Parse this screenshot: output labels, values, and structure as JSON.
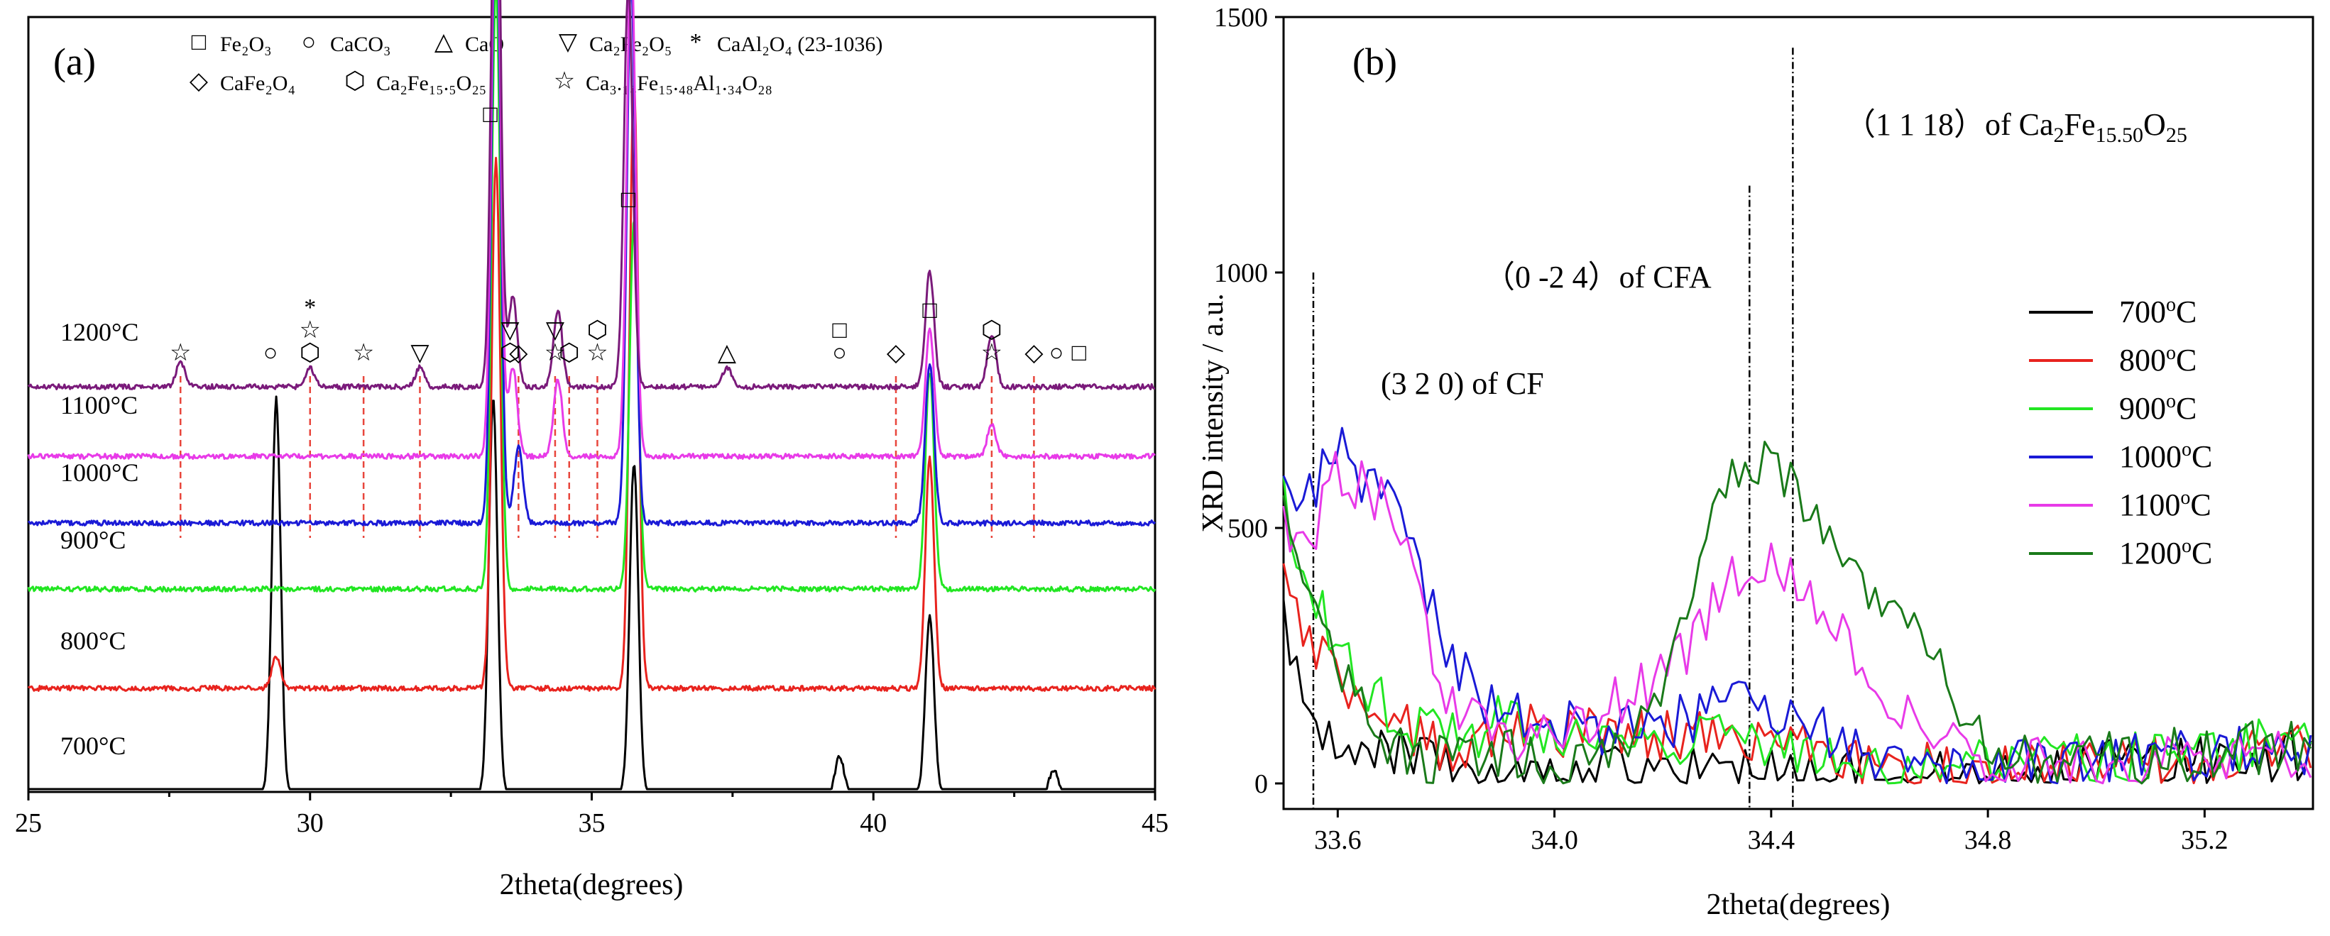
{
  "panel_a": {
    "label": "(a)",
    "xlabel": "2theta(degrees)",
    "xticks": [
      "25",
      "30",
      "35",
      "40",
      "45"
    ],
    "legend_row1": [
      {
        "symbol": "□",
        "label": "Fe₂O₃"
      },
      {
        "symbol": "○",
        "label": "CaCO₃"
      },
      {
        "symbol": "△",
        "label": "CaO"
      },
      {
        "symbol": "▽",
        "label": "Ca₂Fe₂O₅"
      },
      {
        "symbol": "*",
        "label": "CaAl₂O₄ (23-1036)"
      }
    ],
    "legend_row2": [
      {
        "symbol": "◇",
        "label": "CaFe₂O₄"
      },
      {
        "symbol": "⬡",
        "label": "Ca₂Fe₁₅.₅O₂₅"
      },
      {
        "symbol": "☆",
        "label": "Ca₃.₁₈Fe₁₅.₄₈Al₁.₃₄O₂₈"
      }
    ],
    "temperatures": [
      "700°C",
      "800°C",
      "900°C",
      "1000°C",
      "1100°C",
      "1200°C"
    ],
    "colors": [
      "#000000",
      "#e8231e",
      "#22e622",
      "#1a1ad6",
      "#e83ae8",
      "#7a1a7a"
    ],
    "peak_markers": [
      {
        "x": 27.7,
        "symbol": "☆"
      },
      {
        "x": 29.3,
        "symbol": "○"
      },
      {
        "x": 30.0,
        "symbol": "⬡"
      },
      {
        "x": 30.0,
        "symbol": "☆"
      },
      {
        "x": 30.0,
        "symbol": "*"
      },
      {
        "x": 30.95,
        "symbol": "☆"
      },
      {
        "x": 31.95,
        "symbol": "▽"
      },
      {
        "x": 33.2,
        "symbol": "□"
      },
      {
        "x": 33.55,
        "symbol": "⬡"
      },
      {
        "x": 33.55,
        "symbol": "▽"
      },
      {
        "x": 33.7,
        "symbol": "◇"
      },
      {
        "x": 34.35,
        "symbol": "☆"
      },
      {
        "x": 34.35,
        "symbol": "▽"
      },
      {
        "x": 34.6,
        "symbol": "⬡"
      },
      {
        "x": 35.1,
        "symbol": "☆"
      },
      {
        "x": 35.1,
        "symbol": "⬡"
      },
      {
        "x": 35.65,
        "symbol": "□"
      },
      {
        "x": 37.4,
        "symbol": "△"
      },
      {
        "x": 39.4,
        "symbol": "○"
      },
      {
        "x": 39.4,
        "symbol": "□"
      },
      {
        "x": 40.4,
        "symbol": "◇"
      },
      {
        "x": 41.0,
        "symbol": "□"
      },
      {
        "x": 42.1,
        "symbol": "☆"
      },
      {
        "x": 42.1,
        "symbol": "⬡"
      },
      {
        "x": 42.85,
        "symbol": "◇"
      },
      {
        "x": 43.25,
        "symbol": "○"
      },
      {
        "x": 43.65,
        "symbol": "□"
      }
    ],
    "drop_lines_x": [
      27.7,
      30.0,
      30.95,
      31.95,
      33.7,
      34.35,
      34.6,
      35.1,
      40.4,
      42.1,
      42.85
    ]
  },
  "panel_b": {
    "label": "(b)",
    "xlabel": "2theta(degrees)",
    "ylabel": "XRD intensity / a.u.",
    "xticks": [
      "33.6",
      "34.0",
      "34.4",
      "34.8",
      "35.2"
    ],
    "yticks": [
      "0",
      "500",
      "1000",
      "1500"
    ],
    "xlim": [
      33.5,
      35.4
    ],
    "ylim": [
      -50,
      1500
    ],
    "ref_lines": [
      {
        "x": 33.555,
        "top": 1000
      },
      {
        "x": 34.36,
        "top": 1170
      },
      {
        "x": 34.44,
        "top": 1440
      }
    ],
    "annotations": {
      "cf_a": "(3 2 0) of CF",
      "cfa_a": "（0 -2 4）of CFA",
      "hex_a": "（1 1 18）of Ca",
      "hex_s1": "2",
      "hex_b": "Fe",
      "hex_s2": "15.50",
      "hex_c": "O",
      "hex_s3": "25"
    },
    "legend": [
      {
        "label": "700",
        "unit": "C",
        "color": "#000000"
      },
      {
        "label": "800",
        "unit": "C",
        "color": "#e8231e"
      },
      {
        "label": "900",
        "unit": "C",
        "color": "#22e622"
      },
      {
        "label": "1000",
        "unit": "C",
        "color": "#1a1ad6"
      },
      {
        "label": "1100",
        "unit": "C",
        "color": "#e83ae8"
      },
      {
        "label": "1200",
        "unit": "C",
        "color": "#1a7a1a"
      }
    ]
  },
  "chart_data": [
    {
      "type": "line",
      "title": "(a)",
      "xlabel": "2theta(degrees)",
      "ylabel": "",
      "xlim": [
        25,
        45
      ],
      "series": [
        {
          "name": "700°C",
          "peaks": [
            [
              29.4,
              0.62
            ],
            [
              33.25,
              0.62
            ],
            [
              35.75,
              0.52
            ],
            [
              39.4,
              0.06
            ],
            [
              41.0,
              0.28
            ],
            [
              43.2,
              0.04
            ]
          ]
        },
        {
          "name": "800°C",
          "peaks": [
            [
              29.4,
              0.05
            ],
            [
              33.3,
              0.83
            ],
            [
              35.75,
              0.95
            ],
            [
              41.0,
              0.36
            ]
          ]
        },
        {
          "name": "900°C",
          "peaks": [
            [
              33.3,
              0.95
            ],
            [
              35.75,
              0.58
            ],
            [
              41.0,
              0.34
            ]
          ]
        },
        {
          "name": "1000°C",
          "peaks": [
            [
              33.3,
              1.0
            ],
            [
              33.7,
              0.12
            ],
            [
              35.7,
              0.85
            ],
            [
              41.0,
              0.25
            ]
          ]
        },
        {
          "name": "1100°C",
          "peaks": [
            [
              33.3,
              0.95
            ],
            [
              33.6,
              0.14
            ],
            [
              34.4,
              0.12
            ],
            [
              35.7,
              0.8
            ],
            [
              41.0,
              0.2
            ],
            [
              42.1,
              0.05
            ]
          ]
        },
        {
          "name": "1200°C",
          "peaks": [
            [
              27.7,
              0.04
            ],
            [
              30.0,
              0.03
            ],
            [
              31.95,
              0.03
            ],
            [
              33.3,
              0.98
            ],
            [
              33.6,
              0.14
            ],
            [
              34.4,
              0.12
            ],
            [
              35.65,
              0.63
            ],
            [
              37.4,
              0.03
            ],
            [
              41.0,
              0.18
            ],
            [
              42.1,
              0.08
            ]
          ]
        }
      ]
    },
    {
      "type": "line",
      "title": "(b)",
      "xlabel": "2theta(degrees)",
      "ylabel": "XRD intensity / a.u.",
      "xlim": [
        33.5,
        35.4
      ],
      "ylim": [
        -50,
        1500
      ],
      "series": [
        {
          "name": "700°C",
          "x": [
            33.5,
            33.55,
            33.6,
            33.7,
            33.8,
            33.9,
            34.0,
            34.2,
            34.4,
            34.6,
            34.8,
            35.0,
            35.2,
            35.4
          ],
          "y": [
            320,
            150,
            80,
            60,
            30,
            20,
            20,
            15,
            20,
            10,
            10,
            30,
            40,
            60
          ]
        },
        {
          "name": "800°C",
          "x": [
            33.5,
            33.55,
            33.6,
            33.7,
            33.8,
            33.9,
            34.0,
            34.2,
            34.4,
            34.6,
            34.8,
            35.0,
            35.2,
            35.4
          ],
          "y": [
            390,
            260,
            200,
            120,
            60,
            110,
            100,
            90,
            80,
            40,
            20,
            40,
            50,
            80
          ]
        },
        {
          "name": "900°C",
          "x": [
            33.5,
            33.55,
            33.6,
            33.7,
            33.8,
            33.9,
            34.0,
            34.2,
            34.4,
            34.6,
            34.8,
            35.0,
            35.2,
            35.4
          ],
          "y": [
            560,
            380,
            260,
            140,
            80,
            120,
            100,
            90,
            70,
            40,
            30,
            50,
            60,
            90
          ]
        },
        {
          "name": "1000°C",
          "x": [
            33.5,
            33.55,
            33.6,
            33.65,
            33.7,
            33.8,
            33.9,
            34.0,
            34.2,
            34.35,
            34.5,
            34.6,
            34.8,
            35.0,
            35.2,
            35.4
          ],
          "y": [
            560,
            560,
            670,
            580,
            560,
            250,
            130,
            110,
            110,
            160,
            100,
            60,
            30,
            40,
            50,
            70
          ]
        },
        {
          "name": "1100°C",
          "x": [
            33.5,
            33.55,
            33.6,
            33.65,
            33.7,
            33.8,
            33.9,
            34.0,
            34.2,
            34.35,
            34.45,
            34.55,
            34.7,
            34.8,
            35.0,
            35.2,
            35.4
          ],
          "y": [
            500,
            480,
            620,
            570,
            540,
            180,
            90,
            100,
            200,
            430,
            400,
            250,
            80,
            40,
            30,
            40,
            60
          ]
        },
        {
          "name": "1200°C",
          "x": [
            33.5,
            33.55,
            33.6,
            33.7,
            33.8,
            33.9,
            34.0,
            34.1,
            34.2,
            34.3,
            34.36,
            34.45,
            34.55,
            34.7,
            34.8,
            34.9,
            35.0,
            35.2,
            35.4
          ],
          "y": [
            520,
            320,
            220,
            60,
            40,
            60,
            30,
            60,
            180,
            520,
            650,
            580,
            420,
            260,
            60,
            40,
            50,
            60,
            80
          ]
        }
      ]
    }
  ]
}
